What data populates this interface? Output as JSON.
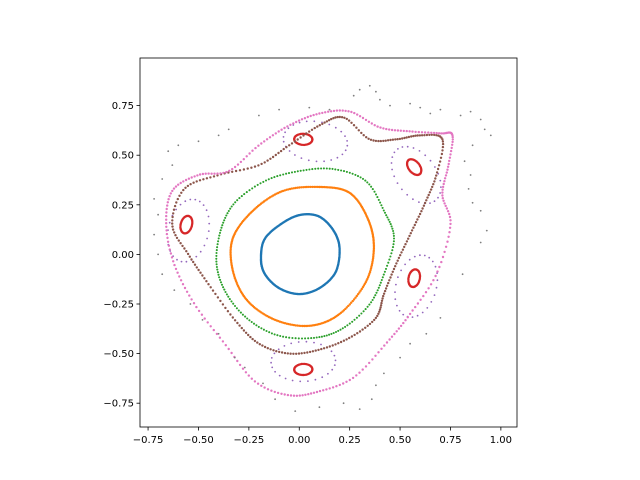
{
  "chart_data": {
    "type": "scatter",
    "title": "",
    "xlabel": "",
    "ylabel": "",
    "xlim": [
      -0.79,
      1.08
    ],
    "ylim": [
      -0.87,
      0.99
    ],
    "grid": false,
    "legend": "none",
    "x_ticks": [
      -0.75,
      -0.5,
      -0.25,
      0.0,
      0.25,
      0.5,
      0.75,
      1.0
    ],
    "x_tick_labels": [
      "−0.75",
      "−0.50",
      "−0.25",
      "0.00",
      "0.25",
      "0.50",
      "0.75",
      "1.00"
    ],
    "y_ticks": [
      -0.75,
      -0.5,
      -0.25,
      0.0,
      0.25,
      0.5,
      0.75
    ],
    "y_tick_labels": [
      "−0.75",
      "−0.50",
      "−0.25",
      "0.00",
      "0.25",
      "0.50",
      "0.75"
    ],
    "series": [
      {
        "color": "#1f77b4",
        "kind": "closed_curve",
        "marker": "dense",
        "points": [
          [
            0.2,
            0.03
          ],
          [
            0.17,
            0.12
          ],
          [
            0.1,
            0.19
          ],
          [
            0.01,
            0.2
          ],
          [
            -0.08,
            0.16
          ],
          [
            -0.17,
            0.08
          ],
          [
            -0.19,
            -0.02
          ],
          [
            -0.17,
            -0.1
          ],
          [
            -0.1,
            -0.17
          ],
          [
            0.0,
            -0.2
          ],
          [
            0.1,
            -0.17
          ],
          [
            0.18,
            -0.09
          ]
        ]
      },
      {
        "color": "#ff7f0e",
        "kind": "closed_curve",
        "marker": "dense",
        "points": [
          [
            0.37,
            0.03
          ],
          [
            0.34,
            0.18
          ],
          [
            0.25,
            0.31
          ],
          [
            0.1,
            0.34
          ],
          [
            -0.08,
            0.32
          ],
          [
            -0.23,
            0.22
          ],
          [
            -0.33,
            0.08
          ],
          [
            -0.33,
            -0.08
          ],
          [
            -0.26,
            -0.23
          ],
          [
            -0.12,
            -0.33
          ],
          [
            0.05,
            -0.36
          ],
          [
            0.2,
            -0.3
          ],
          [
            0.33,
            -0.14
          ]
        ]
      },
      {
        "color": "#2ca02c",
        "kind": "closed_curve",
        "marker": "small",
        "points": [
          [
            0.47,
            0.08
          ],
          [
            0.42,
            0.22
          ],
          [
            0.33,
            0.37
          ],
          [
            0.17,
            0.43
          ],
          [
            0.0,
            0.42
          ],
          [
            -0.17,
            0.37
          ],
          [
            -0.32,
            0.26
          ],
          [
            -0.39,
            0.12
          ],
          [
            -0.41,
            -0.05
          ],
          [
            -0.36,
            -0.2
          ],
          [
            -0.25,
            -0.33
          ],
          [
            -0.1,
            -0.41
          ],
          [
            0.08,
            -0.42
          ],
          [
            0.22,
            -0.37
          ],
          [
            0.35,
            -0.25
          ],
          [
            0.42,
            -0.1
          ]
        ]
      },
      {
        "color": "#d62728",
        "kind": "islands",
        "marker": "dense",
        "centers": [
          [
            0.02,
            0.58
          ],
          [
            0.57,
            0.44
          ],
          [
            0.57,
            -0.12
          ],
          [
            0.02,
            -0.58
          ],
          [
            -0.56,
            0.15
          ]
        ],
        "rx": 0.045,
        "ry": 0.028
      },
      {
        "color": "#9467bd",
        "kind": "islands",
        "marker": "sparse",
        "centers": [
          [
            0.08,
            0.57
          ],
          [
            0.58,
            0.4
          ],
          [
            0.58,
            -0.16
          ],
          [
            0.02,
            -0.54
          ],
          [
            -0.55,
            0.12
          ]
        ],
        "rx": 0.16,
        "ry": 0.1
      },
      {
        "color": "#8c564b",
        "kind": "closed_curve",
        "marker": "dense",
        "points": [
          [
            0.71,
            0.58
          ],
          [
            0.68,
            0.4
          ],
          [
            0.62,
            0.25
          ],
          [
            0.55,
            0.1
          ],
          [
            0.48,
            -0.05
          ],
          [
            0.42,
            -0.2
          ],
          [
            0.38,
            -0.32
          ],
          [
            0.25,
            -0.42
          ],
          [
            0.1,
            -0.48
          ],
          [
            -0.05,
            -0.5
          ],
          [
            -0.2,
            -0.45
          ],
          [
            -0.32,
            -0.33
          ],
          [
            -0.45,
            -0.15
          ],
          [
            -0.55,
            0.0
          ],
          [
            -0.63,
            0.15
          ],
          [
            -0.57,
            0.33
          ],
          [
            -0.4,
            0.4
          ],
          [
            -0.2,
            0.45
          ],
          [
            -0.05,
            0.55
          ],
          [
            0.1,
            0.65
          ],
          [
            0.22,
            0.69
          ],
          [
            0.35,
            0.58
          ],
          [
            0.48,
            0.58
          ],
          [
            0.6,
            0.6
          ]
        ]
      },
      {
        "color": "#e377c2",
        "kind": "closed_curve",
        "marker": "dense",
        "points": [
          [
            0.76,
            0.6
          ],
          [
            0.74,
            0.45
          ],
          [
            0.71,
            0.3
          ],
          [
            0.75,
            0.15
          ],
          [
            0.68,
            -0.1
          ],
          [
            0.55,
            -0.3
          ],
          [
            0.43,
            -0.45
          ],
          [
            0.27,
            -0.62
          ],
          [
            0.1,
            -0.69
          ],
          [
            -0.05,
            -0.71
          ],
          [
            -0.22,
            -0.64
          ],
          [
            -0.37,
            -0.45
          ],
          [
            -0.52,
            -0.25
          ],
          [
            -0.62,
            -0.05
          ],
          [
            -0.66,
            0.15
          ],
          [
            -0.63,
            0.32
          ],
          [
            -0.5,
            0.4
          ],
          [
            -0.35,
            0.42
          ],
          [
            -0.2,
            0.55
          ],
          [
            -0.05,
            0.65
          ],
          [
            0.1,
            0.71
          ],
          [
            0.25,
            0.72
          ],
          [
            0.4,
            0.64
          ],
          [
            0.55,
            0.62
          ],
          [
            0.7,
            0.61
          ]
        ]
      },
      {
        "color": "#7f7f7f",
        "kind": "scatter_cloud",
        "marker": "sparse",
        "points": [
          [
            0.27,
            0.8
          ],
          [
            0.3,
            0.83
          ],
          [
            0.35,
            0.85
          ],
          [
            0.38,
            0.82
          ],
          [
            0.4,
            0.78
          ],
          [
            0.45,
            0.75
          ],
          [
            0.55,
            0.76
          ],
          [
            0.6,
            0.74
          ],
          [
            0.65,
            0.71
          ],
          [
            0.7,
            0.73
          ],
          [
            0.8,
            0.7
          ],
          [
            0.85,
            0.72
          ],
          [
            0.9,
            0.68
          ],
          [
            0.92,
            0.63
          ],
          [
            0.95,
            0.6
          ],
          [
            0.86,
            0.55
          ],
          [
            0.82,
            0.47
          ],
          [
            0.85,
            0.4
          ],
          [
            0.84,
            0.33
          ],
          [
            0.86,
            0.26
          ],
          [
            0.9,
            0.22
          ],
          [
            0.93,
            0.12
          ],
          [
            0.9,
            0.06
          ],
          [
            0.81,
            -0.1
          ],
          [
            0.7,
            -0.32
          ],
          [
            0.63,
            -0.4
          ],
          [
            0.55,
            -0.45
          ],
          [
            0.5,
            -0.52
          ],
          [
            0.42,
            -0.6
          ],
          [
            0.38,
            -0.66
          ],
          [
            0.36,
            -0.73
          ],
          [
            0.3,
            -0.78
          ],
          [
            0.22,
            -0.75
          ],
          [
            0.1,
            -0.77
          ],
          [
            -0.02,
            -0.79
          ],
          [
            -0.12,
            -0.73
          ],
          [
            -0.18,
            -0.65
          ],
          [
            -0.27,
            -0.57
          ],
          [
            -0.32,
            -0.52
          ],
          [
            -0.4,
            -0.4
          ],
          [
            -0.48,
            -0.33
          ],
          [
            -0.54,
            -0.25
          ],
          [
            -0.62,
            -0.18
          ],
          [
            -0.68,
            -0.1
          ],
          [
            -0.7,
            0.0
          ],
          [
            -0.72,
            0.1
          ],
          [
            -0.7,
            0.2
          ],
          [
            -0.72,
            0.28
          ],
          [
            -0.68,
            0.38
          ],
          [
            -0.63,
            0.45
          ],
          [
            -0.65,
            0.52
          ],
          [
            -0.6,
            0.55
          ],
          [
            -0.5,
            0.57
          ],
          [
            -0.4,
            0.6
          ],
          [
            -0.35,
            0.63
          ],
          [
            -0.2,
            0.7
          ],
          [
            -0.1,
            0.73
          ],
          [
            0.05,
            0.74
          ],
          [
            0.15,
            0.73
          ]
        ]
      }
    ]
  }
}
